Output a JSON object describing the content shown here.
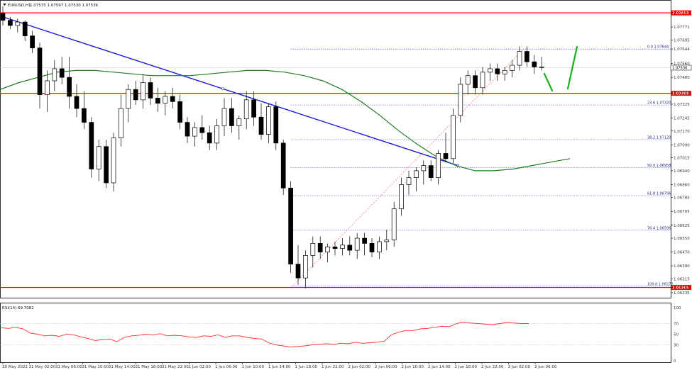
{
  "window": {
    "symbol_title": "EURUSD,H1",
    "ohlc": "1.07575 1.07597 1.07530 1.07536"
  },
  "rsi": {
    "label": "RSI(14) 69.7082",
    "levels": [
      "100",
      "70",
      "50",
      "30",
      "0"
    ]
  },
  "price_axis": {
    "ticks": [
      "1.07853",
      "1.07771",
      "1.07695",
      "1.07644",
      "1.07560",
      "1.07480",
      "1.07388",
      "1.07325",
      "1.07245",
      "1.07170",
      "1.07090",
      "1.07015",
      "1.06940",
      "1.06860",
      "1.06785",
      "1.06705",
      "1.06625",
      "1.06550",
      "1.06470",
      "1.06390",
      "1.06315",
      "1.06265",
      "1.06235"
    ],
    "current_price": "1.07536"
  },
  "horizontal_lines": [
    {
      "name": "resistance-top",
      "price": "1.07853",
      "color": "#ff0000"
    },
    {
      "name": "resistance-mid",
      "price": "1.07388",
      "color": "#ff0000"
    },
    {
      "name": "support-bottom",
      "price": "1.06265",
      "color": "#ff0000"
    }
  ],
  "fibonacci_levels": [
    {
      "label": "0.0  1.07644"
    },
    {
      "label": "23.6  1.07320"
    },
    {
      "label": "38.2  1.07120"
    },
    {
      "label": "50.0  1.06958"
    },
    {
      "label": "61.8  1.06796"
    },
    {
      "label": "76.4  1.06596"
    },
    {
      "label": "100.0  1.06272"
    }
  ],
  "time_axis": [
    "30 May 2022",
    "31 May 02:00",
    "31 May 06:00",
    "31 May 10:00",
    "31 May 14:00",
    "31 May 18:00",
    "31 May 22:00",
    "1 Jun 02:00",
    "1 Jun 06:00",
    "1 Jun 10:00",
    "1 Jun 14:00",
    "1 Jun 18:00",
    "1 Jun 22:00",
    "2 Jun 02:00",
    "2 Jun 06:00",
    "2 Jun 10:00",
    "2 Jun 14:00",
    "2 Jun 18:00",
    "2 Jun 22:00",
    "3 Jun 02:00",
    "3 Jun 06:00"
  ],
  "colors": {
    "bull_candle": "#ffffff",
    "bear_candle": "#000000",
    "trendline": "#1a1adb",
    "moving_average": "#1e7d1e",
    "forecast": "#19b019",
    "fib": "#2b2bd0",
    "rsi": "#ff3030",
    "level_line": "#ff0000"
  },
  "chart_data": {
    "type": "candlestick",
    "symbol": "EURUSD",
    "timeframe": "H1",
    "ylim": [
      1.0621,
      1.0787
    ],
    "candles": [
      [
        1.0785,
        1.0789,
        1.0778,
        1.0781
      ],
      [
        1.0781,
        1.0783,
        1.0776,
        1.0778
      ],
      [
        1.0778,
        1.0782,
        1.0774,
        1.078
      ],
      [
        1.078,
        1.0781,
        1.0769,
        1.0772
      ],
      [
        1.0772,
        1.0775,
        1.0762,
        1.0765
      ],
      [
        1.0765,
        1.0768,
        1.073,
        1.0738
      ],
      [
        1.0738,
        1.0752,
        1.0728,
        1.0746
      ],
      [
        1.0746,
        1.0758,
        1.074,
        1.0753
      ],
      [
        1.0753,
        1.076,
        1.0744,
        1.0748
      ],
      [
        1.0748,
        1.076,
        1.073,
        1.0737
      ],
      [
        1.0737,
        1.0744,
        1.0725,
        1.073
      ],
      [
        1.073,
        1.074,
        1.0718,
        1.0722
      ],
      [
        1.0722,
        1.0725,
        1.069,
        1.0695
      ],
      [
        1.0695,
        1.0712,
        1.0688,
        1.0708
      ],
      [
        1.0708,
        1.0712,
        1.0684,
        1.0687
      ],
      [
        1.0687,
        1.0716,
        1.0682,
        1.0713
      ],
      [
        1.0713,
        1.0738,
        1.0708,
        1.073
      ],
      [
        1.073,
        1.0744,
        1.0722,
        1.0741
      ],
      [
        1.0741,
        1.0746,
        1.0732,
        1.0735
      ],
      [
        1.0735,
        1.075,
        1.073,
        1.0745
      ],
      [
        1.0745,
        1.0748,
        1.0732,
        1.0736
      ],
      [
        1.0736,
        1.0742,
        1.0728,
        1.0733
      ],
      [
        1.0733,
        1.074,
        1.0726,
        1.0737
      ],
      [
        1.0737,
        1.0742,
        1.073,
        1.0734
      ],
      [
        1.0734,
        1.0738,
        1.0718,
        1.0722
      ],
      [
        1.0722,
        1.0725,
        1.071,
        1.0714
      ],
      [
        1.0714,
        1.0722,
        1.0708,
        1.0719
      ],
      [
        1.0719,
        1.0726,
        1.0712,
        1.0716
      ],
      [
        1.0716,
        1.072,
        1.0706,
        1.071
      ],
      [
        1.071,
        1.0724,
        1.0706,
        1.072
      ],
      [
        1.072,
        1.0736,
        1.0714,
        1.073
      ],
      [
        1.073,
        1.0736,
        1.0716,
        1.072
      ],
      [
        1.072,
        1.0726,
        1.0712,
        1.0724
      ],
      [
        1.0724,
        1.074,
        1.0718,
        1.0735
      ],
      [
        1.0735,
        1.074,
        1.072,
        1.0725
      ],
      [
        1.0725,
        1.0733,
        1.0712,
        1.0715
      ],
      [
        1.0715,
        1.0733,
        1.071,
        1.0731
      ],
      [
        1.0731,
        1.0734,
        1.0706,
        1.071
      ],
      [
        1.071,
        1.0712,
        1.068,
        1.0684
      ],
      [
        1.0684,
        1.0688,
        1.0635,
        1.064
      ],
      [
        1.064,
        1.0651,
        1.0628,
        1.0632
      ],
      [
        1.0632,
        1.0648,
        1.0626,
        1.0645
      ],
      [
        1.0645,
        1.0656,
        1.0638,
        1.0652
      ],
      [
        1.0652,
        1.0656,
        1.0643,
        1.0647
      ],
      [
        1.0647,
        1.0652,
        1.0641,
        1.065
      ],
      [
        1.065,
        1.0653,
        1.0645,
        1.0649
      ],
      [
        1.0649,
        1.0655,
        1.0645,
        1.0651
      ],
      [
        1.0651,
        1.0656,
        1.0645,
        1.0648
      ],
      [
        1.0648,
        1.0658,
        1.0643,
        1.0655
      ],
      [
        1.0655,
        1.0658,
        1.0645,
        1.0652
      ],
      [
        1.0652,
        1.0655,
        1.0644,
        1.0647
      ],
      [
        1.0647,
        1.0656,
        1.0643,
        1.0653
      ],
      [
        1.0653,
        1.066,
        1.0648,
        1.0654
      ],
      [
        1.0654,
        1.0676,
        1.065,
        1.0672
      ],
      [
        1.0672,
        1.069,
        1.0668,
        1.0686
      ],
      [
        1.0686,
        1.0694,
        1.068,
        1.069
      ],
      [
        1.069,
        1.0696,
        1.0682,
        1.0694
      ],
      [
        1.0694,
        1.07,
        1.0686,
        1.0697
      ],
      [
        1.0697,
        1.07,
        1.0688,
        1.069
      ],
      [
        1.069,
        1.0706,
        1.0686,
        1.0704
      ],
      [
        1.0704,
        1.0716,
        1.0699,
        1.0701
      ],
      [
        1.0701,
        1.073,
        1.0698,
        1.0726
      ],
      [
        1.0726,
        1.0748,
        1.0722,
        1.0744
      ],
      [
        1.0744,
        1.0752,
        1.0738,
        1.0749
      ],
      [
        1.0749,
        1.0752,
        1.0738,
        1.0742
      ],
      [
        1.0742,
        1.0754,
        1.0738,
        1.0751
      ],
      [
        1.0751,
        1.0756,
        1.0746,
        1.0753
      ],
      [
        1.0753,
        1.0756,
        1.0746,
        1.075
      ],
      [
        1.075,
        1.0754,
        1.0746,
        1.0752
      ],
      [
        1.0752,
        1.0758,
        1.0748,
        1.0755
      ],
      [
        1.0755,
        1.0766,
        1.0752,
        1.0763
      ],
      [
        1.0763,
        1.0766,
        1.0754,
        1.0757
      ],
      [
        1.0757,
        1.0761,
        1.075,
        1.0754
      ],
      [
        1.0754,
        1.076,
        1.0752,
        1.0754
      ]
    ],
    "moving_average": [
      1.0741,
      1.0745,
      1.0748,
      1.0751,
      1.0752,
      1.0752,
      1.0751,
      1.075,
      1.0749,
      1.0749,
      1.0749,
      1.075,
      1.0751,
      1.0752,
      1.0752,
      1.0751,
      1.0749,
      1.0746,
      1.0741,
      1.0734,
      1.0726,
      1.0717,
      1.0709,
      1.0702,
      1.0697,
      1.0694,
      1.0694,
      1.0695,
      1.0697,
      1.0699,
      1.0701
    ],
    "trendline": {
      "from": [
        1.0783
      ],
      "to": [
        1.0697
      ]
    },
    "fib_range": [
      1.07644,
      1.06272
    ],
    "rsi": [
      62,
      61,
      63,
      60,
      52,
      50,
      47,
      48,
      46,
      50,
      49,
      45,
      42,
      38,
      40,
      41,
      36,
      44,
      47,
      48,
      50,
      49,
      51,
      47,
      48,
      47,
      45,
      44,
      47,
      46,
      49,
      44,
      47,
      47,
      44,
      42,
      41,
      34,
      30,
      28,
      26,
      27,
      28,
      30,
      31,
      32,
      31,
      33,
      32,
      35,
      33,
      34,
      35,
      37,
      49,
      54,
      57,
      57,
      60,
      61,
      63,
      65,
      64,
      70,
      73,
      71,
      70,
      69,
      68,
      70,
      72,
      71,
      70,
      70
    ]
  }
}
